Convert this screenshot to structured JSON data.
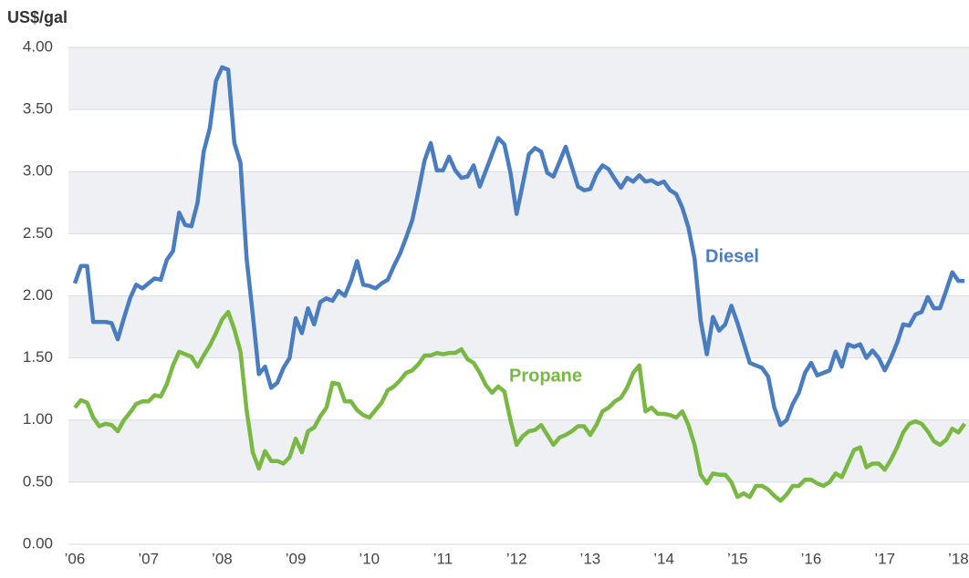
{
  "chart_data": {
    "type": "line",
    "y_label": "US$/gal",
    "categories": [
      "’06",
      null,
      null,
      null,
      null,
      null,
      null,
      null,
      null,
      null,
      null,
      null,
      "’07",
      null,
      null,
      null,
      null,
      null,
      null,
      null,
      null,
      null,
      null,
      null,
      "’08",
      null,
      null,
      null,
      null,
      null,
      null,
      null,
      null,
      null,
      null,
      null,
      "’09",
      null,
      null,
      null,
      null,
      null,
      null,
      null,
      null,
      null,
      null,
      null,
      "’10",
      null,
      null,
      null,
      null,
      null,
      null,
      null,
      null,
      null,
      null,
      null,
      "’11",
      null,
      null,
      null,
      null,
      null,
      null,
      null,
      null,
      null,
      null,
      null,
      "’12",
      null,
      null,
      null,
      null,
      null,
      null,
      null,
      null,
      null,
      null,
      null,
      "’13",
      null,
      null,
      null,
      null,
      null,
      null,
      null,
      null,
      null,
      null,
      null,
      "’14",
      null,
      null,
      null,
      null,
      null,
      null,
      null,
      null,
      null,
      null,
      null,
      "’15",
      null,
      null,
      null,
      null,
      null,
      null,
      null,
      null,
      null,
      null,
      null,
      "’16",
      null,
      null,
      null,
      null,
      null,
      null,
      null,
      null,
      null,
      null,
      null,
      "’17",
      null,
      null,
      null,
      null,
      null,
      null,
      null,
      null,
      null,
      null,
      null,
      "’18",
      null
    ],
    "series": [
      {
        "name": "Diesel",
        "color": "#4a7cc0",
        "values": [
          2.1,
          2.24,
          2.24,
          1.79,
          1.79,
          1.79,
          1.78,
          1.65,
          1.82,
          1.98,
          2.09,
          2.06,
          2.1,
          2.14,
          2.13,
          2.29,
          2.36,
          2.67,
          2.57,
          2.56,
          2.75,
          3.16,
          3.35,
          3.73,
          3.84,
          3.82,
          3.23,
          3.07,
          2.3,
          1.85,
          1.37,
          1.43,
          1.26,
          1.3,
          1.42,
          1.5,
          1.82,
          1.7,
          1.9,
          1.77,
          1.95,
          1.98,
          1.96,
          2.04,
          2.0,
          2.12,
          2.28,
          2.09,
          2.08,
          2.06,
          2.1,
          2.13,
          2.24,
          2.34,
          2.47,
          2.61,
          2.84,
          3.09,
          3.23,
          3.01,
          3.01,
          3.12,
          3.01,
          2.95,
          2.96,
          3.05,
          2.88,
          3.01,
          3.14,
          3.27,
          3.22,
          2.99,
          2.66,
          2.9,
          3.14,
          3.19,
          3.16,
          2.99,
          2.96,
          3.08,
          3.2,
          3.04,
          2.88,
          2.85,
          2.86,
          2.98,
          3.05,
          3.02,
          2.94,
          2.87,
          2.95,
          2.92,
          2.97,
          2.92,
          2.93,
          2.9,
          2.92,
          2.85,
          2.82,
          2.71,
          2.55,
          2.3,
          1.8,
          1.53,
          1.83,
          1.72,
          1.77,
          1.92,
          1.78,
          1.62,
          1.46,
          1.44,
          1.42,
          1.35,
          1.1,
          0.96,
          1.0,
          1.13,
          1.22,
          1.38,
          1.46,
          1.36,
          1.38,
          1.4,
          1.55,
          1.43,
          1.61,
          1.59,
          1.61,
          1.5,
          1.56,
          1.5,
          1.4,
          1.5,
          1.62,
          1.77,
          1.76,
          1.85,
          1.87,
          1.99,
          1.9,
          1.9,
          2.04,
          2.19,
          2.12,
          2.12
        ]
      },
      {
        "name": "Propane",
        "color": "#78b843",
        "values": [
          1.1,
          1.16,
          1.14,
          1.02,
          0.95,
          0.97,
          0.96,
          0.91,
          1.0,
          1.06,
          1.13,
          1.15,
          1.15,
          1.2,
          1.19,
          1.29,
          1.44,
          1.55,
          1.53,
          1.51,
          1.43,
          1.52,
          1.6,
          1.7,
          1.81,
          1.87,
          1.73,
          1.55,
          1.08,
          0.74,
          0.61,
          0.75,
          0.67,
          0.67,
          0.65,
          0.7,
          0.85,
          0.74,
          0.91,
          0.94,
          1.03,
          1.1,
          1.3,
          1.29,
          1.15,
          1.15,
          1.08,
          1.04,
          1.02,
          1.08,
          1.14,
          1.24,
          1.27,
          1.32,
          1.38,
          1.4,
          1.45,
          1.52,
          1.52,
          1.54,
          1.53,
          1.54,
          1.54,
          1.57,
          1.49,
          1.46,
          1.38,
          1.28,
          1.22,
          1.27,
          1.23,
          1.0,
          0.8,
          0.87,
          0.91,
          0.92,
          0.96,
          0.88,
          0.8,
          0.86,
          0.88,
          0.91,
          0.95,
          0.95,
          0.88,
          0.96,
          1.07,
          1.1,
          1.15,
          1.18,
          1.26,
          1.38,
          1.44,
          1.07,
          1.1,
          1.05,
          1.05,
          1.04,
          1.02,
          1.07,
          0.96,
          0.8,
          0.56,
          0.49,
          0.57,
          0.56,
          0.56,
          0.5,
          0.38,
          0.41,
          0.38,
          0.47,
          0.47,
          0.44,
          0.39,
          0.35,
          0.4,
          0.47,
          0.47,
          0.52,
          0.52,
          0.49,
          0.47,
          0.5,
          0.57,
          0.54,
          0.65,
          0.76,
          0.78,
          0.62,
          0.65,
          0.65,
          0.6,
          0.68,
          0.78,
          0.9,
          0.97,
          0.99,
          0.97,
          0.91,
          0.83,
          0.8,
          0.84,
          0.93,
          0.9,
          0.97
        ]
      }
    ],
    "ylim": [
      0,
      4
    ],
    "yticks": [
      {
        "value": 0,
        "label": "0.00"
      },
      {
        "value": 0.5,
        "label": "0.50"
      },
      {
        "value": 1,
        "label": "1.00"
      },
      {
        "value": 1.5,
        "label": "1.50"
      },
      {
        "value": 2,
        "label": "2.00"
      },
      {
        "value": 2.5,
        "label": "2.50"
      },
      {
        "value": 3,
        "label": "3.00"
      },
      {
        "value": 3.5,
        "label": "3.50"
      },
      {
        "value": 4,
        "label": "4.00"
      }
    ],
    "grid": true
  }
}
